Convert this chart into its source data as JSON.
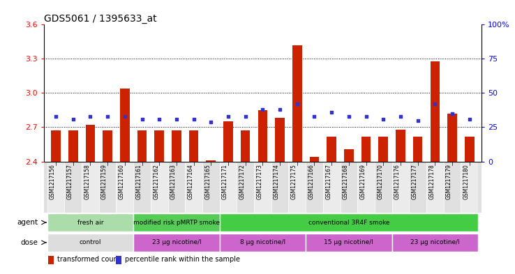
{
  "title": "GDS5061 / 1395633_at",
  "samples": [
    "GSM1217156",
    "GSM1217157",
    "GSM1217158",
    "GSM1217159",
    "GSM1217160",
    "GSM1217161",
    "GSM1217162",
    "GSM1217163",
    "GSM1217164",
    "GSM1217165",
    "GSM1217171",
    "GSM1217172",
    "GSM1217173",
    "GSM1217174",
    "GSM1217175",
    "GSM1217166",
    "GSM1217167",
    "GSM1217168",
    "GSM1217169",
    "GSM1217170",
    "GSM1217176",
    "GSM1217177",
    "GSM1217178",
    "GSM1217179",
    "GSM1217180"
  ],
  "bar_values": [
    2.675,
    2.672,
    2.72,
    2.672,
    3.04,
    2.672,
    2.672,
    2.672,
    2.672,
    2.41,
    2.75,
    2.672,
    2.85,
    2.78,
    3.42,
    2.44,
    2.62,
    2.51,
    2.62,
    2.62,
    2.68,
    2.62,
    3.28,
    2.82,
    2.62
  ],
  "dot_values": [
    33,
    31,
    33,
    33,
    33,
    31,
    31,
    31,
    31,
    29,
    33,
    33,
    38,
    38,
    42,
    33,
    36,
    33,
    33,
    31,
    33,
    30,
    42,
    35,
    31
  ],
  "ymin": 2.4,
  "ymax": 3.6,
  "y2min": 0,
  "y2max": 100,
  "yticks": [
    2.4,
    2.7,
    3.0,
    3.3,
    3.6
  ],
  "y2ticks": [
    0,
    25,
    50,
    75,
    100
  ],
  "bar_color": "#cc2200",
  "dot_color": "#3333cc",
  "bar_width": 0.55,
  "agent_groups": [
    {
      "label": "fresh air",
      "start": 0,
      "end": 4,
      "color": "#aaddaa"
    },
    {
      "label": "modified risk pMRTP smoke",
      "start": 5,
      "end": 9,
      "color": "#55cc55"
    },
    {
      "label": "conventional 3R4F smoke",
      "start": 10,
      "end": 24,
      "color": "#44cc44"
    }
  ],
  "dose_groups": [
    {
      "label": "control",
      "start": 0,
      "end": 4,
      "color": "#dddddd"
    },
    {
      "label": "23 μg nicotine/l",
      "start": 5,
      "end": 9,
      "color": "#cc66cc"
    },
    {
      "label": "8 μg nicotine/l",
      "start": 10,
      "end": 14,
      "color": "#cc66cc"
    },
    {
      "label": "15 μg nicotine/l",
      "start": 15,
      "end": 19,
      "color": "#cc66cc"
    },
    {
      "label": "23 μg nicotine/l",
      "start": 20,
      "end": 24,
      "color": "#cc66cc"
    }
  ],
  "legend_red": "transformed count",
  "legend_blue": "percentile rank within the sample",
  "bg_color": "#ffffff",
  "tick_bg_color": "#e0e0e0",
  "grid_dotted_color": "#333333"
}
